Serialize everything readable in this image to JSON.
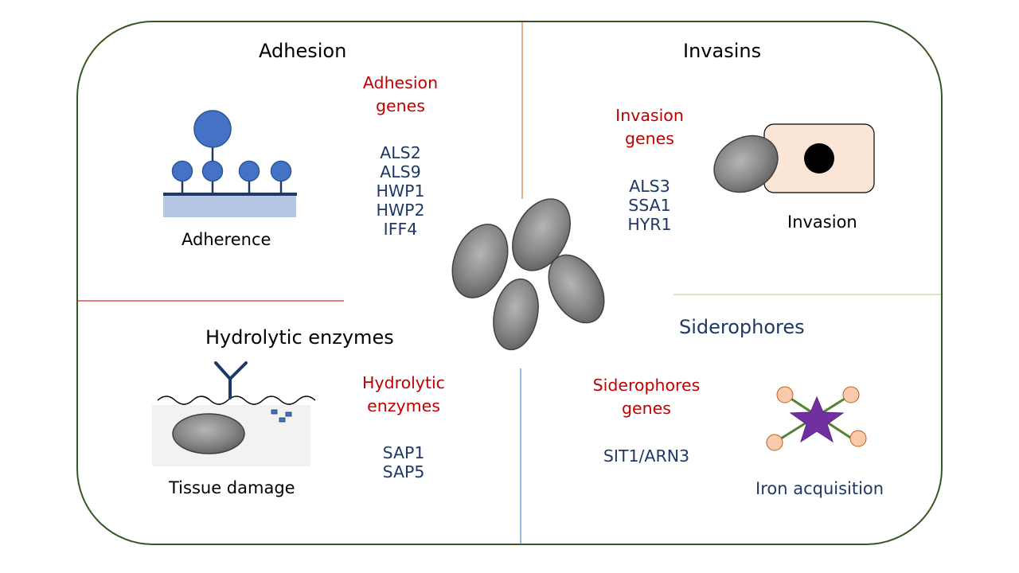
{
  "quadrants": {
    "adhesion": {
      "title": "Adhesion",
      "gene_heading": "Adhesion\ngenes",
      "genes": [
        "ALS2",
        "ALS9",
        "HWP1",
        "HWP2",
        "IFF4"
      ],
      "illustration_label": "Adherence"
    },
    "invasins": {
      "title": "Invasins",
      "gene_heading": "Invasion\ngenes",
      "genes": [
        "ALS3",
        "SSA1",
        "HYR1"
      ],
      "illustration_label": "Invasion"
    },
    "hydrolytic": {
      "title": "Hydrolytic enzymes",
      "gene_heading": "Hydrolytic\nenzymes",
      "genes": [
        "SAP1",
        "SAP5"
      ],
      "illustration_label": "Tissue damage"
    },
    "siderophores": {
      "title": "Siderophores",
      "gene_heading": "Siderophores\ngenes",
      "genes": [
        "SIT1/ARN3"
      ],
      "illustration_label": "Iron acquisition"
    }
  },
  "colors": {
    "frame": "#375623",
    "gene_heading": "#c00000",
    "gene_text": "#1f3864",
    "cell_fill": "#808080",
    "host_cell_fill": "#fbe5d6",
    "adhesin_blue": "#4472c4",
    "substrate": "#b4c7e7",
    "iron_star": "#7030a0",
    "siderophore_ball": "#f8cbad",
    "siderophore_arm": "#548235"
  }
}
